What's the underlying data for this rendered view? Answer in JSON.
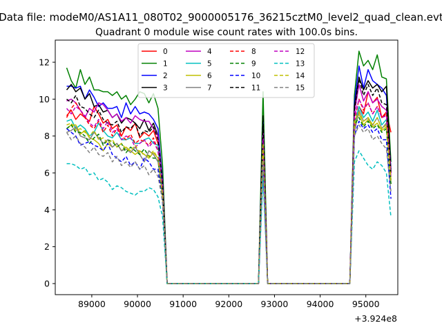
{
  "figure": {
    "suptitle": "Data file: modeM0/AS1A11_080T02_9000005176_36215cztM0_level2_quad_clean.evt",
    "title": "Quadrant 0 module wise count rates with 100.0s bins."
  },
  "chart_data": {
    "type": "line",
    "title": "Quadrant 0 module wise count rates with 100.0s bins.",
    "xlabel": "",
    "ylabel": "",
    "x_offset_label": "+3.924e8",
    "x_offset": 392400000,
    "xlim": [
      88200,
      95700
    ],
    "ylim": [
      -0.6,
      13.2
    ],
    "xticks": [
      89000,
      90000,
      91000,
      92000,
      93000,
      94000,
      95000
    ],
    "xtick_labels": [
      "89000",
      "90000",
      "91000",
      "92000",
      "93000",
      "94000",
      "95000"
    ],
    "yticks": [
      0,
      2,
      4,
      6,
      8,
      10,
      12
    ],
    "ytick_labels": [
      "0",
      "2",
      "4",
      "6",
      "8",
      "10",
      "12"
    ],
    "grid": false,
    "legend_position": "upper-center",
    "legend_columns": 4,
    "x": [
      88450,
      88550,
      88650,
      88750,
      88850,
      88950,
      89050,
      89150,
      89250,
      89350,
      89450,
      89550,
      89650,
      89750,
      89850,
      89950,
      90050,
      90150,
      90250,
      90350,
      90450,
      90550,
      90650,
      90750,
      92550,
      92650,
      92750,
      92850,
      92950,
      94550,
      94650,
      94750,
      94850,
      94950,
      95050,
      95150,
      95250,
      95350,
      95450,
      95550
    ],
    "series": [
      {
        "name": "0",
        "color": "#ff0000",
        "dash": "solid",
        "values": [
          9.1,
          9.4,
          8.9,
          9.2,
          9.0,
          8.8,
          9.6,
          9.2,
          8.7,
          8.9,
          8.4,
          8.6,
          8.0,
          8.5,
          8.3,
          8.7,
          7.9,
          8.2,
          8.0,
          8.3,
          7.6,
          5.2,
          0,
          0,
          0,
          0,
          7.2,
          0,
          0,
          0,
          0,
          8.4,
          9.6,
          9.2,
          10.4,
          9.8,
          10.1,
          9.0,
          9.3,
          8.2
        ]
      },
      {
        "name": "1",
        "color": "#008000",
        "dash": "solid",
        "values": [
          11.7,
          11.0,
          10.6,
          11.6,
          10.8,
          11.2,
          10.5,
          10.5,
          10.4,
          10.4,
          10.2,
          10.4,
          10.0,
          10.2,
          9.7,
          10.0,
          10.4,
          10.3,
          9.8,
          10.3,
          9.5,
          6.4,
          0,
          0,
          0,
          0,
          10.4,
          0,
          0,
          0,
          0,
          10.2,
          12.6,
          11.8,
          12.1,
          11.6,
          12.4,
          11.2,
          11.1,
          6.6
        ]
      },
      {
        "name": "2",
        "color": "#0000ff",
        "dash": "solid",
        "values": [
          10.7,
          10.7,
          10.6,
          10.7,
          10.0,
          10.5,
          10.1,
          9.6,
          9.8,
          9.5,
          9.5,
          9.6,
          9.0,
          9.8,
          9.2,
          9.6,
          9.2,
          9.3,
          9.2,
          8.9,
          8.4,
          5.6,
          0,
          0,
          0,
          0,
          8.8,
          0,
          0,
          0,
          0,
          9.8,
          11.8,
          10.6,
          11.6,
          11.0,
          10.8,
          10.6,
          10.2,
          6.2
        ]
      },
      {
        "name": "3",
        "color": "#000000",
        "dash": "solid",
        "values": [
          10.5,
          10.8,
          10.4,
          10.6,
          10.0,
          10.3,
          9.6,
          9.7,
          9.3,
          9.4,
          9.0,
          9.2,
          8.7,
          9.0,
          8.9,
          8.7,
          8.4,
          8.9,
          8.3,
          8.7,
          8.0,
          5.5,
          0,
          0,
          0,
          0,
          8.6,
          0,
          0,
          0,
          0,
          9.6,
          11.2,
          10.5,
          11.0,
          10.6,
          10.8,
          10.4,
          10.7,
          6.0
        ]
      },
      {
        "name": "4",
        "color": "#bf00bf",
        "dash": "solid",
        "values": [
          9.9,
          10.0,
          9.8,
          9.4,
          9.0,
          9.5,
          9.3,
          9.8,
          9.7,
          9.4,
          9.0,
          9.2,
          8.8,
          9.0,
          8.7,
          9.1,
          8.9,
          8.8,
          8.8,
          8.4,
          8.0,
          5.4,
          0,
          0,
          0,
          0,
          8.2,
          0,
          0,
          0,
          0,
          9.2,
          10.8,
          9.9,
          10.4,
          9.8,
          10.0,
          9.6,
          9.4,
          6.0
        ]
      },
      {
        "name": "5",
        "color": "#00bfbf",
        "dash": "solid",
        "values": [
          8.8,
          8.9,
          8.4,
          8.6,
          8.4,
          8.0,
          8.2,
          8.7,
          8.3,
          8.0,
          7.9,
          8.2,
          7.8,
          7.8,
          7.9,
          7.6,
          7.6,
          7.8,
          7.9,
          7.6,
          7.5,
          5.0,
          0,
          0,
          0,
          0,
          7.0,
          0,
          0,
          0,
          0,
          8.6,
          9.6,
          9.0,
          9.3,
          8.8,
          9.4,
          8.6,
          8.9,
          5.6
        ]
      },
      {
        "name": "6",
        "color": "#bfbf00",
        "dash": "solid",
        "values": [
          8.4,
          8.6,
          8.6,
          8.1,
          8.3,
          7.9,
          7.8,
          7.6,
          7.2,
          7.6,
          7.4,
          7.6,
          7.2,
          7.4,
          7.2,
          7.0,
          7.2,
          7.0,
          6.8,
          7.1,
          6.8,
          4.6,
          0,
          0,
          0,
          0,
          6.6,
          0,
          0,
          0,
          0,
          8.6,
          9.2,
          8.6,
          8.9,
          8.5,
          8.7,
          8.3,
          8.5,
          5.4
        ]
      },
      {
        "name": "7",
        "color": "#808080",
        "dash": "solid",
        "values": [
          8.2,
          8.3,
          8.5,
          8.0,
          7.9,
          7.8,
          8.2,
          7.9,
          7.6,
          7.8,
          7.4,
          7.6,
          7.2,
          7.3,
          7.1,
          7.4,
          7.0,
          6.6,
          7.2,
          7.0,
          6.6,
          4.8,
          0,
          0,
          0,
          0,
          6.9,
          0,
          0,
          0,
          0,
          8.2,
          9.4,
          8.8,
          9.0,
          8.6,
          9.0,
          8.4,
          8.7,
          5.6
        ]
      },
      {
        "name": "8",
        "color": "#ff0000",
        "dash": "dashed",
        "values": [
          9.0,
          9.5,
          9.8,
          9.4,
          9.0,
          8.6,
          8.4,
          8.8,
          8.2,
          8.6,
          8.0,
          8.4,
          8.0,
          7.8,
          8.1,
          7.6,
          7.8,
          7.7,
          7.5,
          7.9,
          7.2,
          5.0,
          0,
          0,
          0,
          0,
          7.4,
          0,
          0,
          0,
          0,
          8.8,
          10.0,
          9.4,
          9.8,
          9.2,
          9.6,
          9.0,
          9.2,
          5.8
        ]
      },
      {
        "name": "9",
        "color": "#008000",
        "dash": "dashed",
        "values": [
          8.4,
          8.6,
          8.2,
          8.2,
          8.0,
          7.6,
          7.9,
          8.1,
          7.5,
          7.8,
          7.7,
          7.4,
          7.6,
          7.1,
          7.4,
          7.2,
          7.0,
          7.3,
          6.9,
          6.8,
          6.8,
          4.6,
          0,
          0,
          0,
          0,
          7.6,
          0,
          0,
          0,
          0,
          8.6,
          9.0,
          8.5,
          8.8,
          8.4,
          8.6,
          8.2,
          8.4,
          5.4
        ]
      },
      {
        "name": "10",
        "color": "#0000ff",
        "dash": "dashed",
        "values": [
          8.4,
          8.2,
          8.0,
          7.5,
          7.6,
          7.7,
          7.5,
          7.4,
          7.2,
          7.6,
          7.0,
          6.8,
          6.6,
          6.9,
          6.4,
          6.6,
          6.2,
          6.8,
          6.6,
          6.2,
          6.2,
          4.4,
          0,
          0,
          0,
          0,
          6.4,
          0,
          0,
          0,
          0,
          8.0,
          8.8,
          8.4,
          8.6,
          8.2,
          8.4,
          7.8,
          7.8,
          4.6
        ]
      },
      {
        "name": "11",
        "color": "#000000",
        "dash": "dashed",
        "values": [
          10.0,
          9.8,
          10.2,
          9.6,
          9.5,
          9.2,
          9.0,
          9.4,
          8.9,
          8.7,
          8.6,
          8.8,
          8.2,
          8.5,
          8.4,
          8.7,
          8.0,
          8.3,
          8.2,
          8.5,
          7.8,
          5.4,
          0,
          0,
          0,
          0,
          9.1,
          0,
          0,
          0,
          0,
          9.4,
          11.1,
          10.2,
          10.8,
          10.2,
          10.6,
          9.8,
          9.7,
          6.0
        ]
      },
      {
        "name": "12",
        "color": "#bf00bf",
        "dash": "dashed",
        "values": [
          9.5,
          9.2,
          9.6,
          9.4,
          9.1,
          8.7,
          8.5,
          8.9,
          8.4,
          8.8,
          8.2,
          8.4,
          7.8,
          8.0,
          7.9,
          7.4,
          7.6,
          7.8,
          7.4,
          7.7,
          7.2,
          5.0,
          0,
          0,
          0,
          0,
          7.8,
          0,
          0,
          0,
          0,
          9.0,
          10.0,
          9.5,
          9.8,
          9.2,
          9.6,
          9.0,
          9.1,
          5.8
        ]
      },
      {
        "name": "13",
        "color": "#00bfbf",
        "dash": "dashed",
        "values": [
          6.5,
          6.5,
          6.4,
          6.2,
          6.3,
          5.9,
          6.0,
          5.6,
          5.7,
          5.5,
          5.1,
          5.3,
          5.2,
          5.0,
          4.9,
          4.8,
          5.0,
          5.0,
          5.2,
          5.1,
          4.7,
          3.6,
          0,
          0,
          0,
          0,
          5.8,
          0,
          0,
          0,
          0,
          6.6,
          7.2,
          6.8,
          6.4,
          6.2,
          6.6,
          6.4,
          6.0,
          3.6
        ]
      },
      {
        "name": "14",
        "color": "#bfbf00",
        "dash": "dashed",
        "values": [
          8.6,
          8.7,
          8.3,
          8.4,
          8.2,
          8.0,
          8.3,
          7.8,
          7.9,
          7.6,
          7.8,
          7.4,
          7.6,
          7.3,
          7.2,
          7.5,
          7.1,
          7.0,
          6.9,
          7.2,
          6.8,
          4.8,
          0,
          0,
          0,
          0,
          7.6,
          0,
          0,
          0,
          0,
          8.8,
          9.3,
          8.8,
          9.0,
          8.6,
          9.0,
          8.4,
          8.6,
          5.6
        ]
      },
      {
        "name": "15",
        "color": "#808080",
        "dash": "dashed",
        "values": [
          8.2,
          7.8,
          8.0,
          7.6,
          7.4,
          7.1,
          7.4,
          7.0,
          6.9,
          7.1,
          6.6,
          6.9,
          6.4,
          6.6,
          6.3,
          6.6,
          6.2,
          6.4,
          5.9,
          6.2,
          5.8,
          4.5,
          0,
          0,
          0,
          0,
          6.6,
          0,
          0,
          0,
          0,
          8.0,
          8.6,
          8.2,
          8.4,
          7.8,
          8.0,
          7.6,
          7.3,
          5.0
        ]
      }
    ]
  }
}
